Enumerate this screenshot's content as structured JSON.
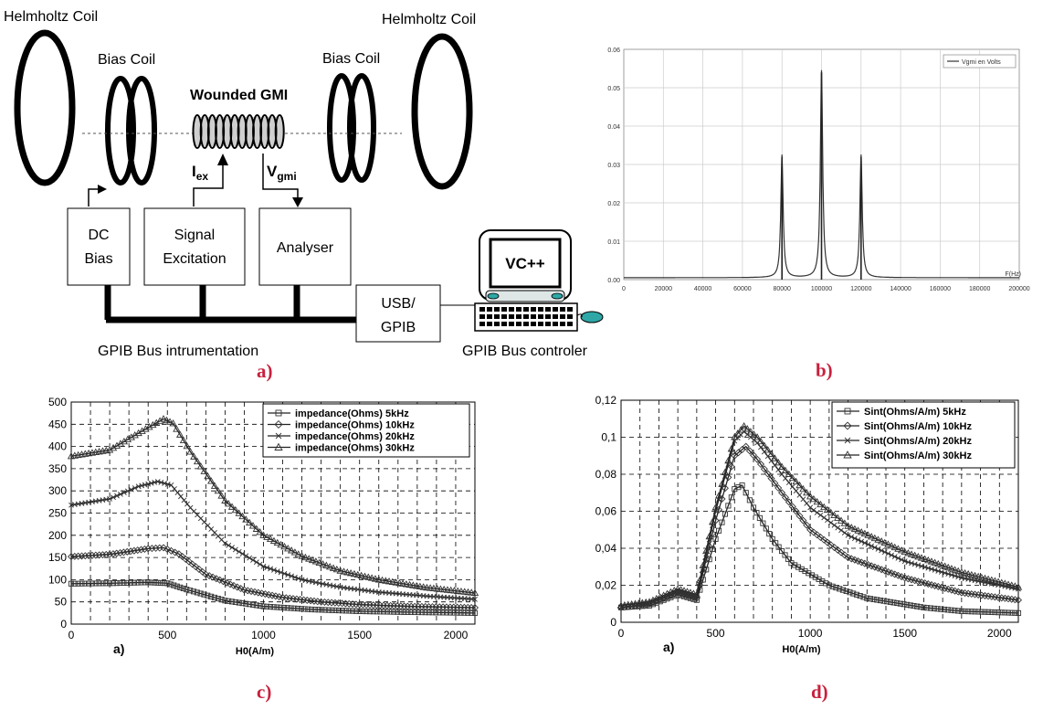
{
  "panel_labels": {
    "a": "a)",
    "b": "b)",
    "c": "c)",
    "d": "d)"
  },
  "diagram": {
    "helmholtz_left": "Helmholtz Coil",
    "helmholtz_right": "Helmholtz Coil",
    "bias_left": "Bias Coil",
    "bias_right": "Bias Coil",
    "gmi": "Wounded GMI",
    "iex_main": "I",
    "iex_sub": "ex",
    "vgmi_main": "V",
    "vgmi_sub": "gmi",
    "dc_bias_1": "DC",
    "dc_bias_2": "Bias",
    "signal_1": "Signal",
    "signal_2": "Excitation",
    "analyser": "Analyser",
    "usb_1": "USB/",
    "usb_2": "GPIB",
    "vc": "VC++",
    "bus": "GPIB Bus intrumentation",
    "controller": "GPIB Bus controler"
  },
  "chart_data": [
    {
      "id": "b",
      "type": "line",
      "legend": [
        "Vgmi en Volts"
      ],
      "legend_position": "top-right",
      "xlabel": "F(Hz)",
      "ylabel": "",
      "xlim": [
        0,
        200000
      ],
      "ylim": [
        0,
        0.06
      ],
      "grid": true,
      "x_ticks": [
        "0",
        "20000",
        "40000",
        "60000",
        "80000",
        "100000",
        "120000",
        "140000",
        "160000",
        "180000",
        "200000"
      ],
      "y_ticks": [
        "0.00",
        "0.01",
        "0.02",
        "0.03",
        "0.04",
        "0.05",
        "0.06"
      ],
      "series": [
        {
          "name": "Vgmi en Volts",
          "peaks": [
            {
              "x": 80000,
              "y": 0.032
            },
            {
              "x": 100000,
              "y": 0.054
            },
            {
              "x": 120000,
              "y": 0.032
            }
          ],
          "baseline": 0.0005
        }
      ]
    },
    {
      "id": "c",
      "type": "line",
      "xlabel": "H0(A/m)",
      "ylabel": "",
      "sublabel": "a)",
      "xlim": [
        0,
        2100
      ],
      "ylim": [
        0,
        500
      ],
      "grid": true,
      "legend_position": "top-right",
      "x_ticks": [
        "0",
        "500",
        "1000",
        "1500",
        "2000"
      ],
      "y_ticks": [
        "0",
        "50",
        "100",
        "150",
        "200",
        "250",
        "300",
        "350",
        "400",
        "450",
        "500"
      ],
      "series": [
        {
          "name": "impedance(Ohms) 5kHz",
          "marker": "square",
          "points": [
            [
              0,
              91
            ],
            [
              200,
              92
            ],
            [
              400,
              94
            ],
            [
              500,
              92
            ],
            [
              600,
              78
            ],
            [
              800,
              53
            ],
            [
              1000,
              40
            ],
            [
              1250,
              33
            ],
            [
              1500,
              29
            ],
            [
              1750,
              27
            ],
            [
              2100,
              25
            ]
          ]
        },
        {
          "name": "impedance(Ohms) 10kHz",
          "marker": "diamond",
          "points": [
            [
              0,
              152
            ],
            [
              200,
              157
            ],
            [
              400,
              170
            ],
            [
              480,
              172
            ],
            [
              560,
              158
            ],
            [
              700,
              112
            ],
            [
              900,
              77
            ],
            [
              1100,
              60
            ],
            [
              1300,
              50
            ],
            [
              1500,
              44
            ],
            [
              1750,
              40
            ],
            [
              2100,
              37
            ]
          ]
        },
        {
          "name": "impedance(Ohms) 20kHz",
          "marker": "x",
          "points": [
            [
              0,
              268
            ],
            [
              200,
              282
            ],
            [
              350,
              310
            ],
            [
              450,
              321
            ],
            [
              520,
              313
            ],
            [
              620,
              262
            ],
            [
              800,
              182
            ],
            [
              1000,
              130
            ],
            [
              1200,
              100
            ],
            [
              1400,
              83
            ],
            [
              1600,
              72
            ],
            [
              1850,
              63
            ],
            [
              2100,
              56
            ]
          ]
        },
        {
          "name": "impedance(Ohms) 30kHz",
          "marker": "triangle",
          "points": [
            [
              0,
              378
            ],
            [
              200,
              392
            ],
            [
              350,
              430
            ],
            [
              480,
              462
            ],
            [
              530,
              452
            ],
            [
              620,
              388
            ],
            [
              800,
              278
            ],
            [
              1000,
              200
            ],
            [
              1200,
              153
            ],
            [
              1400,
              120
            ],
            [
              1600,
              100
            ],
            [
              1850,
              82
            ],
            [
              2100,
              70
            ]
          ]
        }
      ]
    },
    {
      "id": "d",
      "type": "line",
      "xlabel": "H0(A/m)",
      "ylabel": "",
      "sublabel": "a)",
      "xlim": [
        0,
        2100
      ],
      "ylim": [
        0,
        0.12
      ],
      "grid": true,
      "legend_position": "top-right",
      "x_ticks": [
        "0",
        "500",
        "1000",
        "1500",
        "2000"
      ],
      "y_ticks": [
        "0",
        "0,02",
        "0,04",
        "0,06",
        "0,08",
        "0,1",
        "0,12"
      ],
      "series": [
        {
          "name": "Sint(Ohms/A/m) 5kHz",
          "marker": "square",
          "points": [
            [
              0,
              0.008
            ],
            [
              150,
              0.009
            ],
            [
              300,
              0.015
            ],
            [
              400,
              0.012
            ],
            [
              500,
              0.045
            ],
            [
              600,
              0.072
            ],
            [
              640,
              0.074
            ],
            [
              700,
              0.062
            ],
            [
              800,
              0.045
            ],
            [
              900,
              0.032
            ],
            [
              1100,
              0.02
            ],
            [
              1300,
              0.013
            ],
            [
              1600,
              0.008
            ],
            [
              1800,
              0.006
            ],
            [
              2100,
              0.005
            ]
          ]
        },
        {
          "name": "Sint(Ohms/A/m) 10kHz",
          "marker": "diamond",
          "points": [
            [
              0,
              0.008
            ],
            [
              150,
              0.01
            ],
            [
              300,
              0.016
            ],
            [
              400,
              0.013
            ],
            [
              500,
              0.055
            ],
            [
              600,
              0.09
            ],
            [
              660,
              0.095
            ],
            [
              720,
              0.088
            ],
            [
              850,
              0.07
            ],
            [
              1000,
              0.05
            ],
            [
              1200,
              0.035
            ],
            [
              1500,
              0.024
            ],
            [
              1800,
              0.016
            ],
            [
              2100,
              0.012
            ]
          ]
        },
        {
          "name": "Sint(Ohms/A/m) 20kHz",
          "marker": "x",
          "points": [
            [
              0,
              0.008
            ],
            [
              150,
              0.01
            ],
            [
              300,
              0.017
            ],
            [
              400,
              0.014
            ],
            [
              500,
              0.06
            ],
            [
              600,
              0.098
            ],
            [
              650,
              0.103
            ],
            [
              720,
              0.097
            ],
            [
              850,
              0.08
            ],
            [
              1000,
              0.062
            ],
            [
              1200,
              0.047
            ],
            [
              1500,
              0.033
            ],
            [
              1800,
              0.024
            ],
            [
              2100,
              0.018
            ]
          ]
        },
        {
          "name": "Sint(Ohms/A/m) 30kHz",
          "marker": "triangle",
          "points": [
            [
              0,
              0.009
            ],
            [
              150,
              0.011
            ],
            [
              300,
              0.018
            ],
            [
              400,
              0.015
            ],
            [
              500,
              0.062
            ],
            [
              600,
              0.1
            ],
            [
              650,
              0.106
            ],
            [
              720,
              0.1
            ],
            [
              850,
              0.084
            ],
            [
              1000,
              0.068
            ],
            [
              1200,
              0.052
            ],
            [
              1500,
              0.038
            ],
            [
              1800,
              0.027
            ],
            [
              2100,
              0.019
            ]
          ]
        }
      ]
    }
  ]
}
